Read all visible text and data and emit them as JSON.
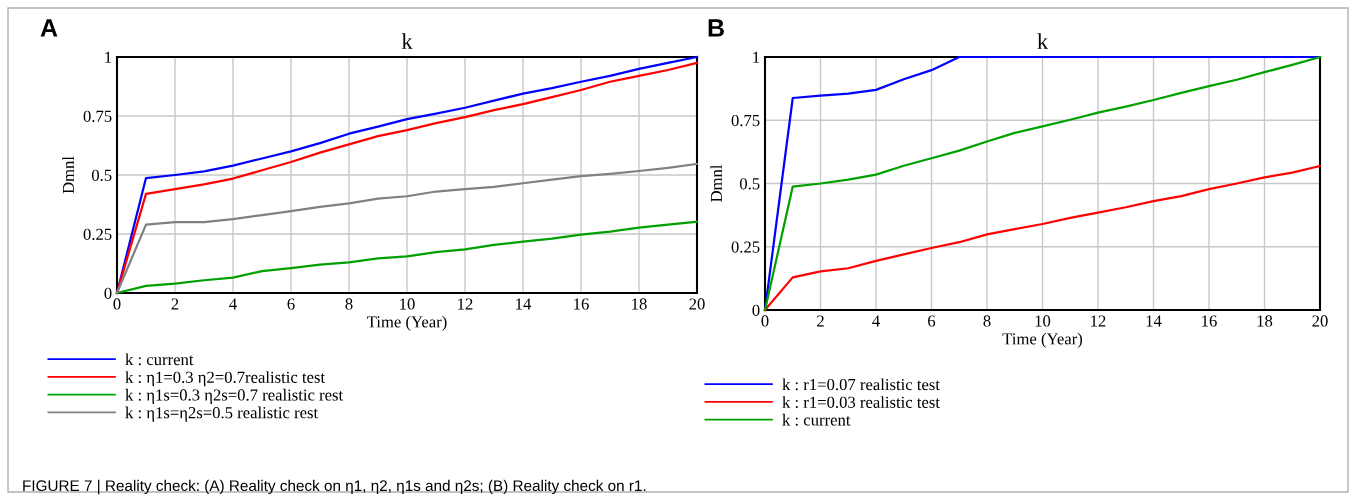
{
  "chart_data": [
    {
      "type": "line",
      "title": "k",
      "xlabel": "Time (Year)",
      "ylabel": "Dmnl",
      "annotations": [
        "A",
        "FIGURE 7 | Reality check: (A) Reality check on η1, η2, η1s and η2s; (B) Reality check on r1."
      ],
      "x": [
        0,
        1,
        2,
        3,
        4,
        5,
        6,
        7,
        8,
        9,
        10,
        11,
        12,
        13,
        14,
        15,
        16,
        17,
        18,
        19,
        20
      ],
      "xlim": [
        0,
        20
      ],
      "xticks": [
        0,
        2,
        4,
        6,
        8,
        10,
        12,
        14,
        16,
        18,
        20
      ],
      "ylim": [
        0,
        1
      ],
      "yticks": [
        0,
        0.25,
        0.5,
        0.75,
        1
      ],
      "grid": true,
      "legend": "bottom",
      "marker": "none",
      "line_style": "solid",
      "series": [
        {
          "name": "k : current",
          "color": "#0000ff",
          "values": [
            0,
            0.487,
            0.5,
            0.515,
            0.54,
            0.57,
            0.6,
            0.635,
            0.675,
            0.705,
            0.737,
            0.76,
            0.785,
            0.815,
            0.845,
            0.868,
            0.895,
            0.92,
            0.95,
            0.975,
            1.0
          ]
        },
        {
          "name": "k : η1=0.3 η2=0.7realistic test",
          "color": "#ff0000",
          "values": [
            0,
            0.42,
            0.44,
            0.46,
            0.485,
            0.52,
            0.555,
            0.595,
            0.63,
            0.665,
            0.69,
            0.72,
            0.745,
            0.775,
            0.8,
            0.83,
            0.86,
            0.895,
            0.92,
            0.945,
            0.975
          ]
        },
        {
          "name": "k : η1s=0.3 η2s=0.7 realistic rest",
          "color": "#00a000",
          "values": [
            0,
            0.03,
            0.04,
            0.054,
            0.065,
            0.093,
            0.105,
            0.12,
            0.13,
            0.147,
            0.155,
            0.173,
            0.185,
            0.204,
            0.218,
            0.23,
            0.247,
            0.26,
            0.277,
            0.29,
            0.302
          ]
        },
        {
          "name": "k : η1s=η2s=0.5 realistic rest",
          "color": "#808080",
          "values": [
            0,
            0.29,
            0.3,
            0.3,
            0.313,
            0.33,
            0.347,
            0.365,
            0.38,
            0.4,
            0.41,
            0.43,
            0.44,
            0.45,
            0.465,
            0.48,
            0.495,
            0.505,
            0.517,
            0.53,
            0.547
          ]
        }
      ]
    },
    {
      "type": "line",
      "title": "k",
      "xlabel": "Time (Year)",
      "ylabel": "Dmnl",
      "annotations": [
        "B"
      ],
      "x": [
        0,
        1,
        2,
        3,
        4,
        5,
        6,
        7,
        8,
        9,
        10,
        11,
        12,
        13,
        14,
        15,
        16,
        17,
        18,
        19,
        20
      ],
      "xlim": [
        0,
        20
      ],
      "xticks": [
        0,
        2,
        4,
        6,
        8,
        10,
        12,
        14,
        16,
        18,
        20
      ],
      "ylim": [
        0,
        1
      ],
      "yticks": [
        0,
        0.25,
        0.5,
        0.75,
        1
      ],
      "grid": true,
      "legend": "bottom",
      "marker": "none",
      "line_style": "solid",
      "series": [
        {
          "name": "k : r1=0.07 realistic test",
          "color": "#0000ff",
          "values": [
            0,
            0.838,
            0.847,
            0.855,
            0.87,
            0.912,
            0.948,
            1,
            1,
            1,
            1,
            1,
            1,
            1,
            1,
            1,
            1,
            1,
            1,
            1,
            1
          ]
        },
        {
          "name": "k : r1=0.03 realistic test",
          "color": "#ff0000",
          "values": [
            0,
            0.129,
            0.153,
            0.165,
            0.194,
            0.22,
            0.245,
            0.268,
            0.299,
            0.32,
            0.34,
            0.364,
            0.385,
            0.406,
            0.43,
            0.45,
            0.478,
            0.5,
            0.524,
            0.543,
            0.569
          ]
        },
        {
          "name": "k : current",
          "color": "#00a000",
          "values": [
            0,
            0.488,
            0.5,
            0.515,
            0.535,
            0.57,
            0.6,
            0.63,
            0.666,
            0.7,
            0.726,
            0.752,
            0.78,
            0.804,
            0.83,
            0.858,
            0.885,
            0.91,
            0.94,
            0.969,
            1.0
          ]
        }
      ]
    }
  ]
}
